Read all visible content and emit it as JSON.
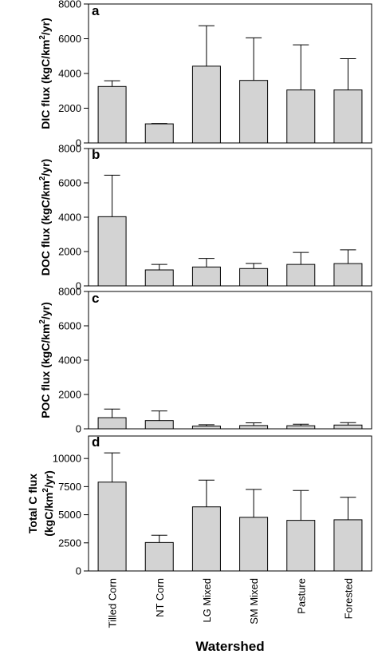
{
  "chart_data": [
    {
      "type": "bar",
      "panel": "a",
      "ylabel": "DIC flux (kgC/km²/yr)",
      "ylabel_parts": [
        "DIC flux (kgC/km",
        "2",
        "/yr)"
      ],
      "categories": [
        "Tilled Corn",
        "NT Corn",
        "LG Mixed",
        "SM Mixed",
        "Pasture",
        "Forested"
      ],
      "values": [
        3250,
        1100,
        4420,
        3600,
        3050,
        3050
      ],
      "error": [
        330,
        20,
        2330,
        2450,
        2600,
        1800
      ],
      "ylim": [
        0,
        8000
      ],
      "yticks": [
        "0",
        "2000",
        "4000",
        "6000",
        "8000"
      ],
      "ytick_values": [
        0,
        2000,
        4000,
        6000,
        8000
      ],
      "bar_color": "#d3d3d3"
    },
    {
      "type": "bar",
      "panel": "b",
      "ylabel": "DOC flux (kgC/km²/yr)",
      "ylabel_parts": [
        "DOC flux (kgC/km",
        "2",
        "/yr)"
      ],
      "categories": [
        "Tilled Corn",
        "NT Corn",
        "LG Mixed",
        "SM Mixed",
        "Pasture",
        "Forested"
      ],
      "values": [
        4030,
        930,
        1100,
        1010,
        1250,
        1300
      ],
      "error": [
        2420,
        320,
        500,
        300,
        700,
        800
      ],
      "ylim": [
        0,
        8000
      ],
      "yticks": [
        "0",
        "2000",
        "4000",
        "6000",
        "8000"
      ],
      "ytick_values": [
        0,
        2000,
        4000,
        6000,
        8000
      ],
      "bar_color": "#d3d3d3"
    },
    {
      "type": "bar",
      "panel": "c",
      "ylabel": "POC flux (kgC/km²/yr)",
      "ylabel_parts": [
        "POC flux (kgC/km",
        "2",
        "/yr)"
      ],
      "categories": [
        "Tilled Corn",
        "NT Corn",
        "LG Mixed",
        "SM Mixed",
        "Pasture",
        "Forested"
      ],
      "values": [
        650,
        480,
        160,
        190,
        180,
        220
      ],
      "error": [
        500,
        560,
        80,
        160,
        90,
        140
      ],
      "ylim": [
        0,
        8000
      ],
      "yticks": [
        "0",
        "2000",
        "4000",
        "6000",
        "8000"
      ],
      "ytick_values": [
        0,
        2000,
        4000,
        6000,
        8000
      ],
      "bar_color": "#d3d3d3"
    },
    {
      "type": "bar",
      "panel": "d",
      "ylabel": "Total C flux (kgC/km²/yr)",
      "ylabel_lines": [
        "Total C flux"
      ],
      "ylabel_parts": [
        "(kgC/km",
        "2",
        "/yr)"
      ],
      "categories": [
        "Tilled Corn",
        "NT Corn",
        "LG Mixed",
        "SM Mixed",
        "Pasture",
        "Forested"
      ],
      "values": [
        7900,
        2530,
        5700,
        4770,
        4500,
        4550
      ],
      "error": [
        2600,
        650,
        2380,
        2480,
        2650,
        2000
      ],
      "ylim": [
        0,
        12000
      ],
      "yticks": [
        "0",
        "2500",
        "5000",
        "7500",
        "10000"
      ],
      "ytick_values": [
        0,
        2500,
        5000,
        7500,
        10000
      ],
      "bar_color": "#d3d3d3"
    }
  ],
  "xlabel": "Watershed",
  "xtick_labels": [
    "Tilled Corn",
    "NT Corn",
    "LG Mixed",
    "SM Mixed",
    "Pasture",
    "Forested"
  ]
}
